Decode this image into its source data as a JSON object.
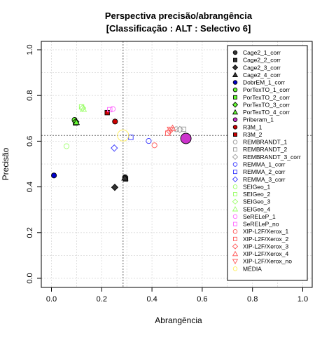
{
  "chart_data": {
    "type": "scatter",
    "title": "Perspectiva precisão/abrangência",
    "subtitle": "[Classificação : ALT : Selectivo 6]",
    "xlabel": "Abrangência",
    "ylabel": "Precisão",
    "xlim": [
      0,
      1
    ],
    "ylim": [
      0,
      1
    ],
    "x_ticks": [
      "0.0",
      "0.2",
      "0.4",
      "0.6",
      "0.8",
      "1.0"
    ],
    "y_ticks": [
      "0.0",
      "0.2",
      "0.4",
      "0.6",
      "0.8",
      "1.0"
    ],
    "grid": true,
    "reference_lines": {
      "x": 0.285,
      "y": 0.625
    },
    "legend_position": "right",
    "series": [
      {
        "name": "Cage2_1_corr",
        "color": "#333333",
        "marker": "circle",
        "filled": true,
        "points": [
          [
            0.293,
            0.442
          ]
        ]
      },
      {
        "name": "Cage2_2_corr",
        "color": "#333333",
        "marker": "square",
        "filled": true,
        "points": [
          [
            0.295,
            0.435
          ]
        ]
      },
      {
        "name": "Cage2_3_corr",
        "color": "#333333",
        "marker": "diamond",
        "filled": true,
        "points": [
          [
            0.252,
            0.398
          ]
        ]
      },
      {
        "name": "Cage2_4_corr",
        "color": "#333333",
        "marker": "triangle",
        "filled": true,
        "points": [
          [
            0.292,
            0.44
          ]
        ]
      },
      {
        "name": "DobrEM_1_corr",
        "color": "#0000cc",
        "marker": "circle",
        "filled": true,
        "points": [
          [
            0.01,
            0.45
          ]
        ]
      },
      {
        "name": "PorTexTO_1_corr",
        "color": "#66ff33",
        "marker": "circle",
        "filled": true,
        "points": [
          [
            0.092,
            0.693
          ]
        ]
      },
      {
        "name": "PorTexTO_2_corr",
        "color": "#66ff33",
        "marker": "square",
        "filled": true,
        "points": [
          [
            0.096,
            0.68
          ]
        ]
      },
      {
        "name": "PorTexTO_3_corr",
        "color": "#66ff33",
        "marker": "diamond",
        "filled": true,
        "points": [
          [
            0.097,
            0.685
          ]
        ]
      },
      {
        "name": "PorTexTO_4_corr",
        "color": "#66ff33",
        "marker": "triangle",
        "filled": true,
        "points": [
          [
            0.099,
            0.683
          ]
        ]
      },
      {
        "name": "Priberam_1",
        "color": "#cc33cc",
        "marker": "circle",
        "filled": true,
        "points": [
          [
            0.535,
            0.612
          ]
        ]
      },
      {
        "name": "R3M_1",
        "color": "#cc0000",
        "marker": "circle",
        "filled": true,
        "points": [
          [
            0.253,
            0.686
          ]
        ]
      },
      {
        "name": "R3M_2",
        "color": "#cc0000",
        "marker": "square",
        "filled": true,
        "points": [
          [
            0.222,
            0.725
          ]
        ]
      },
      {
        "name": "REMBRANDT_1",
        "color": "#999999",
        "marker": "circle",
        "filled": false,
        "points": [
          [
            0.497,
            0.652
          ]
        ]
      },
      {
        "name": "REMBRANDT_2",
        "color": "#999999",
        "marker": "square",
        "filled": false,
        "points": [
          [
            0.526,
            0.652
          ]
        ]
      },
      {
        "name": "REMBRANDT_3_corr",
        "color": "#999999",
        "marker": "diamond",
        "filled": false,
        "points": [
          [
            0.511,
            0.651
          ]
        ]
      },
      {
        "name": "REMMA_1_corr",
        "color": "#3333ff",
        "marker": "circle",
        "filled": false,
        "points": [
          [
            0.387,
            0.601
          ]
        ]
      },
      {
        "name": "REMMA_2_corr",
        "color": "#3333ff",
        "marker": "square",
        "filled": false,
        "points": [
          [
            0.316,
            0.617
          ]
        ]
      },
      {
        "name": "REMMA_3_corr",
        "color": "#3333ff",
        "marker": "diamond",
        "filled": false,
        "points": [
          [
            0.25,
            0.57
          ]
        ]
      },
      {
        "name": "SEIGeo_1",
        "color": "#99ff66",
        "marker": "circle",
        "filled": false,
        "points": [
          [
            0.06,
            0.578
          ]
        ]
      },
      {
        "name": "SEIGeo_2",
        "color": "#99ff66",
        "marker": "square",
        "filled": false,
        "points": [
          [
            0.12,
            0.75
          ]
        ]
      },
      {
        "name": "SEIGeo_3",
        "color": "#99ff66",
        "marker": "diamond",
        "filled": false,
        "points": [
          [
            0.124,
            0.745
          ]
        ]
      },
      {
        "name": "SEIGeo_4",
        "color": "#99ff66",
        "marker": "triangle",
        "filled": false,
        "points": [
          [
            0.127,
            0.741
          ]
        ]
      },
      {
        "name": "SeRELeP_1",
        "color": "#ff66ff",
        "marker": "circle",
        "filled": false,
        "points": [
          [
            0.244,
            0.741
          ]
        ]
      },
      {
        "name": "SeRELeP_no",
        "color": "#ff66ff",
        "marker": "square",
        "filled": false,
        "points": [
          [
            0.232,
            0.738
          ]
        ]
      },
      {
        "name": "XIP-L2F/Xerox_1",
        "color": "#ff5555",
        "marker": "circle",
        "filled": false,
        "points": [
          [
            0.41,
            0.582
          ]
        ]
      },
      {
        "name": "XIP-L2F/Xerox_2",
        "color": "#ff5555",
        "marker": "square",
        "filled": false,
        "points": [
          [
            0.463,
            0.635
          ]
        ]
      },
      {
        "name": "XIP-L2F/Xerox_3",
        "color": "#ff5555",
        "marker": "diamond",
        "filled": false,
        "points": [
          [
            0.47,
            0.644
          ]
        ]
      },
      {
        "name": "XIP-L2F/Xerox_4",
        "color": "#ff5555",
        "marker": "triangle",
        "filled": false,
        "points": [
          [
            0.482,
            0.657
          ]
        ]
      },
      {
        "name": "XIP-L2F/Xerox_no",
        "color": "#ff5555",
        "marker": "triangle-down",
        "filled": false,
        "points": [
          [
            0.473,
            0.651
          ]
        ]
      },
      {
        "name": "MÉDIA",
        "color": "#ffee55",
        "marker": "circle",
        "filled": false,
        "points": [
          [
            0.285,
            0.625
          ]
        ]
      }
    ]
  }
}
